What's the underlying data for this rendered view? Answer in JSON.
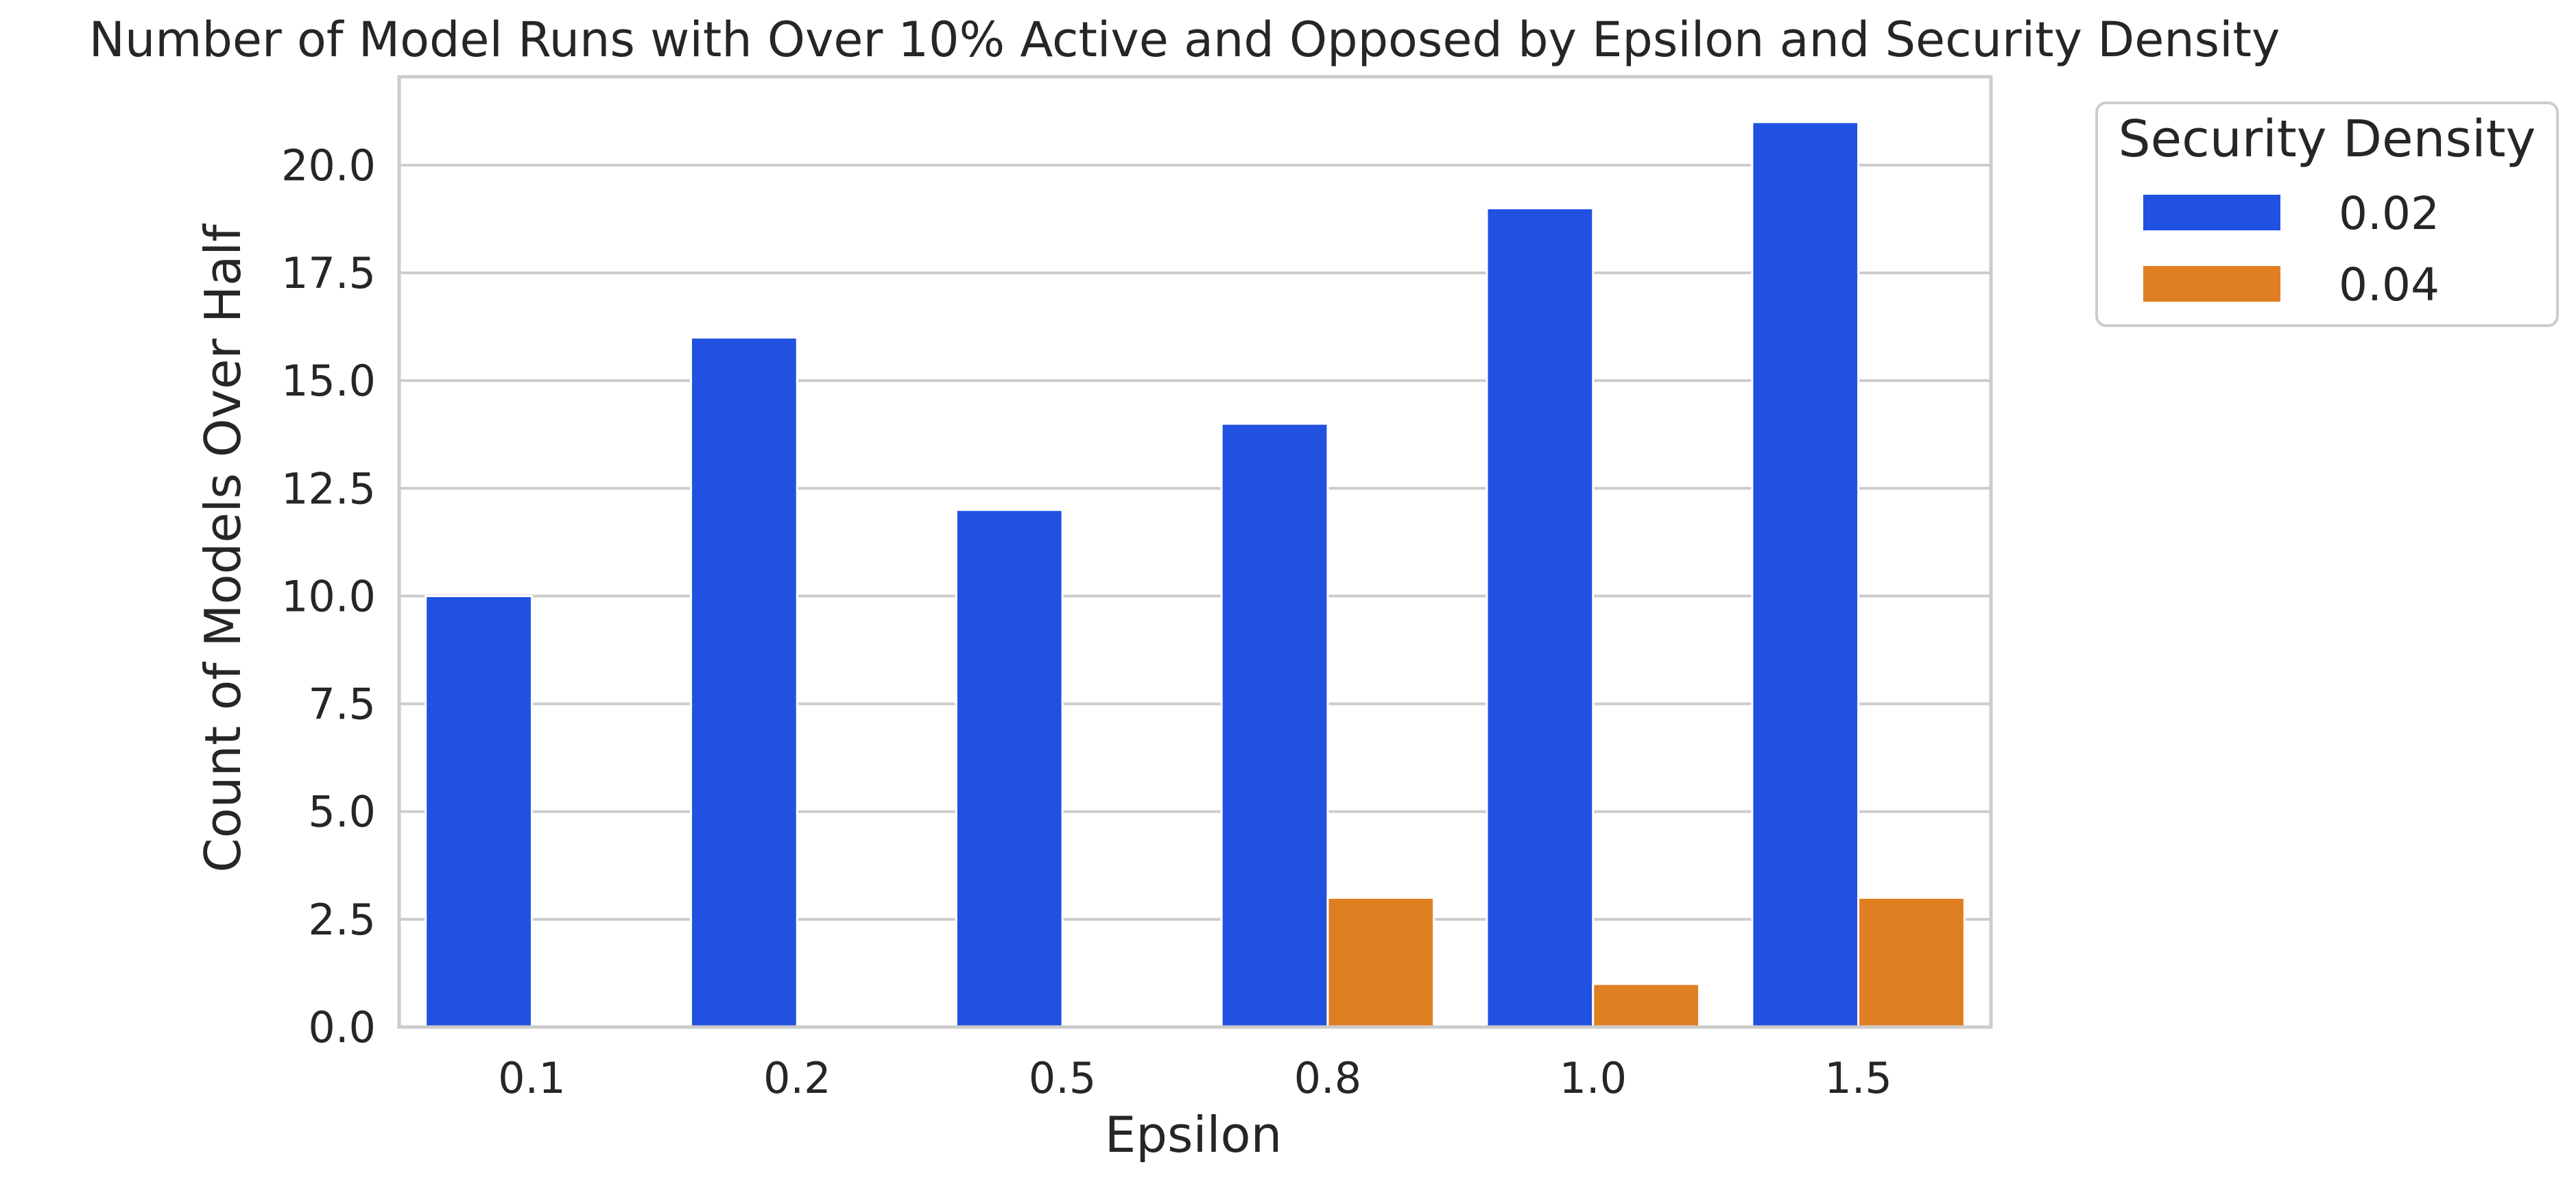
{
  "chart_data": {
    "type": "bar",
    "title": "Number of Model Runs with Over 10% Active and Opposed by Epsilon and Security Density",
    "xlabel": "Epsilon",
    "ylabel": "Count of Models Over Half",
    "categories": [
      "0.1",
      "0.2",
      "0.5",
      "0.8",
      "1.0",
      "1.5"
    ],
    "ylim": [
      0,
      22.05
    ],
    "yticks": [
      "0.0",
      "2.5",
      "5.0",
      "7.5",
      "10.0",
      "12.5",
      "15.0",
      "17.5",
      "20.0"
    ],
    "grid": true,
    "legend": {
      "title": "Security Density",
      "placement": "outside-right-top"
    },
    "series": [
      {
        "name": "0.02",
        "color": "#2151e1",
        "values": [
          10,
          16,
          12,
          14,
          19,
          21
        ]
      },
      {
        "name": "0.04",
        "color": "#e07e22",
        "values": [
          0,
          0,
          0,
          3,
          1,
          3
        ]
      }
    ]
  }
}
